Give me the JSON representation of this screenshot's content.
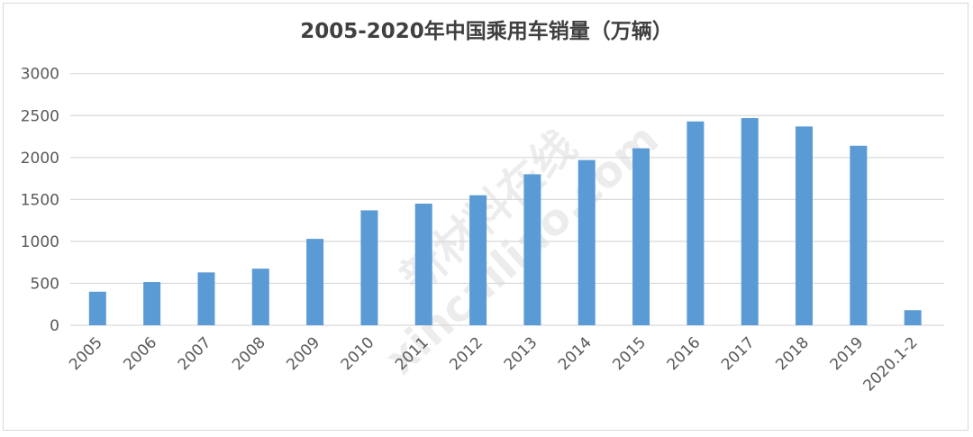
{
  "chart_data": {
    "type": "bar",
    "title": "2005-2020年中国乘用车销量（万辆）",
    "categories": [
      "2005",
      "2006",
      "2007",
      "2008",
      "2009",
      "2010",
      "2011",
      "2012",
      "2013",
      "2014",
      "2015",
      "2016",
      "2017",
      "2018",
      "2019",
      "2020.1-2"
    ],
    "values": [
      400,
      515,
      630,
      675,
      1030,
      1370,
      1450,
      1550,
      1800,
      1970,
      2110,
      2430,
      2470,
      2370,
      2140,
      180
    ],
    "xlabel": "",
    "ylabel": "",
    "ylim": [
      0,
      3000
    ],
    "yticks": [
      0,
      500,
      1000,
      1500,
      2000,
      2500,
      3000
    ],
    "grid": true,
    "legend": "none",
    "bar_color": "#5b9bd5",
    "watermark": "新材料在线 xincailiao.com"
  }
}
